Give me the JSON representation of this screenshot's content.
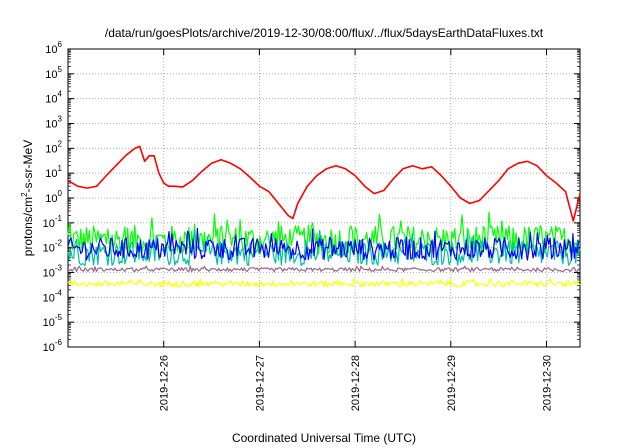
{
  "chart_data": {
    "type": "line",
    "title": "/data/run/goesPlots/archive/2019-12-30/08:00/flux/../flux/5daysEarthDataFluxes.txt",
    "xlabel": "Coordinated Universal Time (UTC)",
    "ylabel": "protons/cm²-s-sr-MeV",
    "ylabel_parts": {
      "pre": "protons/cm",
      "sup": "2",
      "post": "-s-sr-MeV"
    },
    "yscale": "log",
    "ylim": [
      1e-06,
      1000000.0
    ],
    "y_ticks": [
      {
        "value": 1e-06,
        "base": "10",
        "exp": "-6"
      },
      {
        "value": 1e-05,
        "base": "10",
        "exp": "-5"
      },
      {
        "value": 0.0001,
        "base": "10",
        "exp": "-4"
      },
      {
        "value": 0.001,
        "base": "10",
        "exp": "-3"
      },
      {
        "value": 0.01,
        "base": "10",
        "exp": "-2"
      },
      {
        "value": 0.1,
        "base": "10",
        "exp": "-1"
      },
      {
        "value": 1.0,
        "base": "10",
        "exp": "0"
      },
      {
        "value": 10.0,
        "base": "10",
        "exp": "1"
      },
      {
        "value": 100.0,
        "base": "10",
        "exp": "2"
      },
      {
        "value": 1000.0,
        "base": "10",
        "exp": "3"
      },
      {
        "value": 10000.0,
        "base": "10",
        "exp": "4"
      },
      {
        "value": 100000.0,
        "base": "10",
        "exp": "5"
      },
      {
        "value": 1000000.0,
        "base": "10",
        "exp": "6"
      }
    ],
    "xlim_days": [
      25.0,
      30.35
    ],
    "x_ticks": [
      {
        "label": "2019-12-26",
        "day": 26
      },
      {
        "label": "2019-12-27",
        "day": 27
      },
      {
        "label": "2019-12-28",
        "day": 28
      },
      {
        "label": "2019-12-29",
        "day": 29
      },
      {
        "label": "2019-12-30",
        "day": 30
      }
    ],
    "grid": true,
    "series": [
      {
        "color": "#ff0000",
        "style": "smooth",
        "x": [
          25.0,
          25.1,
          25.2,
          25.3,
          25.4,
          25.5,
          25.6,
          25.7,
          25.75,
          25.8,
          25.85,
          25.9,
          25.95,
          26.0,
          26.05,
          26.1,
          26.2,
          26.3,
          26.4,
          26.5,
          26.6,
          26.7,
          26.8,
          26.9,
          27.0,
          27.1,
          27.2,
          27.3,
          27.35,
          27.4,
          27.5,
          27.6,
          27.7,
          27.8,
          27.9,
          28.0,
          28.1,
          28.2,
          28.3,
          28.4,
          28.5,
          28.6,
          28.7,
          28.8,
          28.9,
          29.0,
          29.1,
          29.2,
          29.3,
          29.4,
          29.5,
          29.6,
          29.7,
          29.8,
          29.9,
          30.0,
          30.1,
          30.2,
          30.28,
          30.35
        ],
        "y": [
          5,
          3,
          2.5,
          3,
          8,
          20,
          50,
          100,
          120,
          30,
          50,
          50,
          10,
          4,
          3,
          3,
          2.8,
          5,
          12,
          25,
          35,
          25,
          15,
          7,
          3,
          1.8,
          0.6,
          0.2,
          0.15,
          0.6,
          3,
          8,
          15,
          20,
          15,
          8,
          3,
          1.5,
          2,
          6,
          15,
          20,
          15,
          18,
          8,
          3,
          1,
          0.6,
          0.8,
          2,
          5,
          15,
          25,
          30,
          20,
          8,
          4,
          1.8,
          0.12,
          1.5
        ]
      },
      {
        "color": "#00ff00",
        "style": "noisy",
        "x_range": [
          25.0,
          30.35
        ],
        "center": 0.02,
        "spread": 0.6
      },
      {
        "color": "#00bfa0",
        "style": "noisy",
        "x_range": [
          25.0,
          30.35
        ],
        "center": 0.006,
        "spread": 0.5
      },
      {
        "color": "#0000ff",
        "style": "noisy",
        "x_range": [
          25.0,
          30.35
        ],
        "center": 0.009,
        "spread": 0.45
      },
      {
        "color": "#996688",
        "style": "noisy",
        "x_range": [
          25.0,
          30.35
        ],
        "center": 0.0013,
        "spread": 0.08
      },
      {
        "color": "#ffff00",
        "style": "noisy",
        "x_range": [
          25.0,
          30.35
        ],
        "center": 0.00035,
        "spread": 0.12
      }
    ]
  }
}
